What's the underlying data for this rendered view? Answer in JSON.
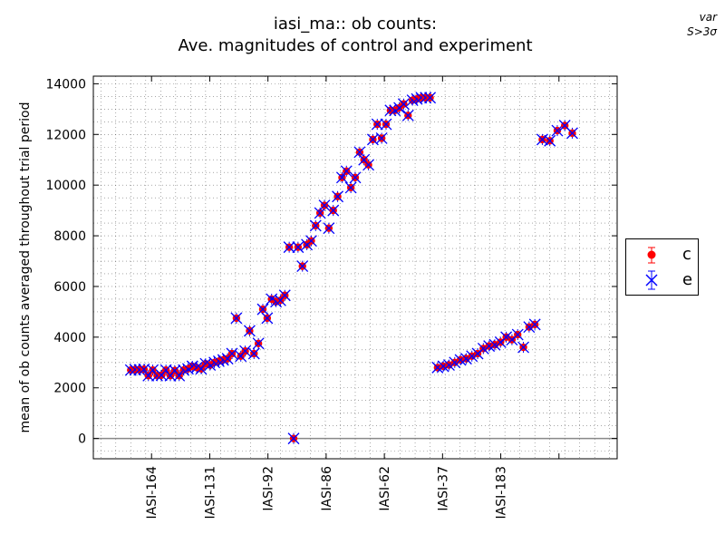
{
  "title_line1": "iasi_ma:: ob counts:",
  "title_line2": "Ave. magnitudes of control and experiment",
  "corner_line1": "var",
  "corner_line2": "S>3σ",
  "chart_data": {
    "type": "scatter",
    "ylabel": "mean of ob counts averaged throughout trial period",
    "ylim": [
      -800,
      14300
    ],
    "yticks": [
      0,
      2000,
      4000,
      6000,
      8000,
      10000,
      12000,
      14000
    ],
    "xlim": [
      -1,
      69
    ],
    "xtick_positions": [
      5,
      12,
      19,
      26,
      33,
      40,
      47
    ],
    "xtick_labels": [
      "IASI-164",
      "IASI-131",
      "IASI-92",
      "IASI-86",
      "IASI-62",
      "IASI-37",
      "IASI-183"
    ],
    "grid": true,
    "legend_position": "right",
    "reference_line_y": 0,
    "series": [
      {
        "name": "c",
        "color": "#ff0000",
        "marker": "circle",
        "y": [
          2700,
          2720,
          2710,
          2730,
          2480,
          2700,
          2480,
          2500,
          2700,
          2480,
          2680,
          2480,
          2700,
          2750,
          2850,
          2800,
          2750,
          2950,
          2900,
          3000,
          3050,
          3100,
          3150,
          3350,
          4750,
          3250,
          3450,
          4250,
          3350,
          3750,
          5100,
          4750,
          5500,
          5400,
          5450,
          5650,
          7550,
          0,
          7550,
          6800,
          7650,
          7800,
          8400,
          8900,
          9200,
          8300,
          9000,
          9550,
          10300,
          10550,
          9900,
          10300,
          11300,
          11000,
          10800,
          11800,
          12400,
          11850,
          12400,
          12950,
          12950,
          13050,
          13200,
          12750,
          13350,
          13400,
          13450,
          13450,
          13450
        ]
      },
      {
        "name": "e",
        "color": "#0000ff",
        "marker": "x with error bars",
        "y": [
          2700,
          2720,
          2710,
          2730,
          2480,
          2700,
          2480,
          2500,
          2700,
          2480,
          2680,
          2480,
          2700,
          2750,
          2850,
          2800,
          2750,
          2950,
          2900,
          3000,
          3050,
          3100,
          3150,
          3350,
          4750,
          3250,
          3450,
          4250,
          3350,
          3750,
          5100,
          4750,
          5500,
          5400,
          5450,
          5650,
          7550,
          0,
          7550,
          6800,
          7650,
          7800,
          8400,
          8900,
          9200,
          8300,
          9000,
          9550,
          10300,
          10550,
          9900,
          10300,
          11300,
          11000,
          10800,
          11800,
          12400,
          11850,
          12400,
          12950,
          12950,
          13050,
          13200,
          12750,
          13350,
          13400,
          13450,
          13450,
          13450
        ]
      }
    ],
    "series2_x_start": 43,
    "series2": {
      "c": [
        2800,
        2850,
        2900,
        3000,
        3100,
        3150,
        3250,
        3350,
        3550,
        3650,
        3700,
        3800,
        4000,
        3900,
        4100,
        3600,
        4400,
        4500,
        11800,
        11750,
        12150,
        12350,
        12050
      ],
      "e": [
        2800,
        2850,
        2900,
        3000,
        3100,
        3150,
        3250,
        3350,
        3550,
        3650,
        3700,
        3800,
        4000,
        3900,
        4100,
        3600,
        4400,
        4500,
        11800,
        11750,
        12150,
        12350,
        12050
      ]
    }
  }
}
